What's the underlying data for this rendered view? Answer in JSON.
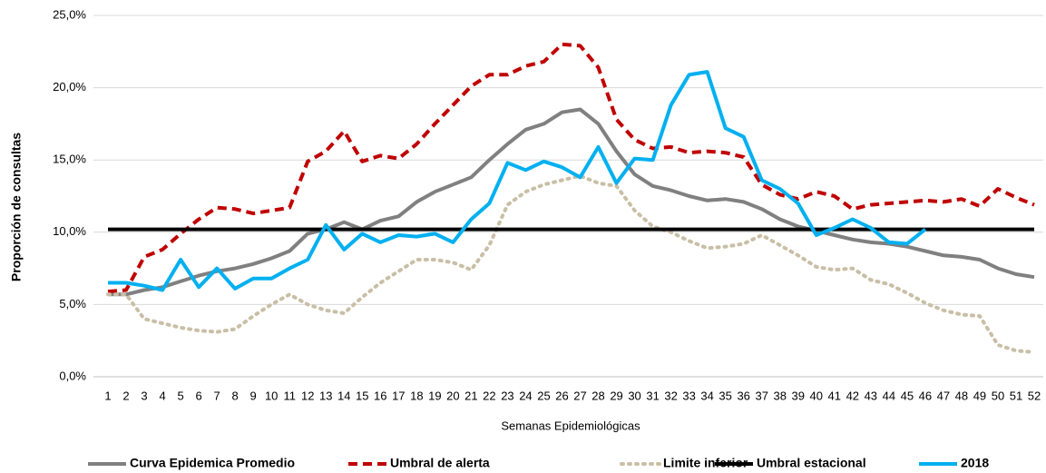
{
  "chart_data": {
    "type": "line",
    "y_axis_label": "Proporción de consultas",
    "x_axis_label": "Semanas Epidemiológicas",
    "categories": [
      "1",
      "2",
      "3",
      "4",
      "5",
      "6",
      "7",
      "8",
      "9",
      "10",
      "11",
      "12",
      "13",
      "14",
      "15",
      "16",
      "17",
      "18",
      "19",
      "20",
      "21",
      "22",
      "23",
      "24",
      "25",
      "26",
      "27",
      "28",
      "29",
      "30",
      "31",
      "32",
      "33",
      "34",
      "35",
      "36",
      "37",
      "38",
      "39",
      "40",
      "41",
      "42",
      "43",
      "44",
      "45",
      "46",
      "47",
      "48",
      "49",
      "50",
      "51",
      "52"
    ],
    "ylim": [
      0,
      25
    ],
    "yticks": [
      {
        "value": 0,
        "label": "0,0%"
      },
      {
        "value": 5,
        "label": "5,0%"
      },
      {
        "value": 10,
        "label": "10,0%"
      },
      {
        "value": 15,
        "label": "15,0%"
      },
      {
        "value": 20,
        "label": "20,0%"
      },
      {
        "value": 25,
        "label": "25,0%"
      }
    ],
    "grid": true,
    "legend": "bottom",
    "series": [
      {
        "name": "Curva Epidemica Promedio",
        "color": "#808080",
        "style": "solid",
        "values": [
          5.7,
          5.7,
          6.0,
          6.2,
          6.6,
          7.0,
          7.3,
          7.5,
          7.8,
          8.2,
          8.7,
          9.9,
          10.2,
          10.7,
          10.2,
          10.8,
          11.1,
          12.1,
          12.8,
          13.3,
          13.8,
          15.0,
          16.1,
          17.1,
          17.5,
          18.3,
          18.5,
          17.5,
          15.6,
          14.0,
          13.2,
          12.9,
          12.5,
          12.2,
          12.3,
          12.1,
          11.6,
          10.9,
          10.4,
          10.1,
          9.8,
          9.5,
          9.3,
          9.2,
          9.0,
          8.7,
          8.4,
          8.3,
          8.1,
          7.5,
          7.1,
          6.9
        ]
      },
      {
        "name": "Umbral de alerta",
        "color": "#c00000",
        "style": "dashed",
        "values": [
          5.9,
          6.0,
          8.3,
          8.8,
          9.9,
          10.9,
          11.7,
          11.6,
          11.3,
          11.5,
          11.7,
          14.9,
          15.6,
          17.0,
          14.9,
          15.3,
          15.1,
          16.1,
          17.5,
          18.8,
          20.1,
          20.9,
          20.9,
          21.5,
          21.8,
          23.0,
          22.9,
          21.4,
          17.8,
          16.4,
          15.8,
          15.9,
          15.5,
          15.6,
          15.5,
          15.2,
          13.3,
          12.6,
          12.3,
          12.8,
          12.5,
          11.6,
          11.9,
          12.0,
          12.1,
          12.2,
          12.1,
          12.3,
          11.8,
          13.0,
          12.4,
          11.9
        ]
      },
      {
        "name": "Limite inferior",
        "color": "#c9bfa6",
        "style": "dotted",
        "values": [
          5.7,
          5.7,
          4.0,
          3.7,
          3.4,
          3.2,
          3.1,
          3.3,
          4.2,
          5.0,
          5.7,
          5.0,
          4.6,
          4.4,
          5.5,
          6.5,
          7.3,
          8.1,
          8.1,
          7.9,
          7.4,
          9.1,
          11.9,
          12.8,
          13.3,
          13.6,
          13.9,
          13.4,
          13.2,
          11.5,
          10.4,
          10.0,
          9.4,
          8.9,
          9.0,
          9.2,
          9.8,
          9.1,
          8.4,
          7.6,
          7.4,
          7.5,
          6.7,
          6.4,
          5.8,
          5.1,
          4.6,
          4.3,
          4.2,
          2.2,
          1.8,
          1.7
        ]
      },
      {
        "name": "Umbral estacional",
        "color": "#000000",
        "style": "solid",
        "values": [
          10.2,
          10.2,
          10.2,
          10.2,
          10.2,
          10.2,
          10.2,
          10.2,
          10.2,
          10.2,
          10.2,
          10.2,
          10.2,
          10.2,
          10.2,
          10.2,
          10.2,
          10.2,
          10.2,
          10.2,
          10.2,
          10.2,
          10.2,
          10.2,
          10.2,
          10.2,
          10.2,
          10.2,
          10.2,
          10.2,
          10.2,
          10.2,
          10.2,
          10.2,
          10.2,
          10.2,
          10.2,
          10.2,
          10.2,
          10.2,
          10.2,
          10.2,
          10.2,
          10.2,
          10.2,
          10.2,
          10.2,
          10.2,
          10.2,
          10.2,
          10.2,
          10.2
        ]
      },
      {
        "name": "2018",
        "color": "#00b0f0",
        "style": "solid",
        "values": [
          6.5,
          6.5,
          6.3,
          6.0,
          8.1,
          6.2,
          7.5,
          6.1,
          6.8,
          6.8,
          7.5,
          8.1,
          10.5,
          8.8,
          9.9,
          9.3,
          9.8,
          9.7,
          9.9,
          9.3,
          10.9,
          12.0,
          14.8,
          14.3,
          14.9,
          14.5,
          13.8,
          15.9,
          13.4,
          15.1,
          15.0,
          18.8,
          20.9,
          21.1,
          17.2,
          16.6,
          13.6,
          13.0,
          12.0,
          9.8,
          10.3,
          10.9,
          10.3,
          9.3,
          9.2,
          10.2,
          null,
          null,
          null,
          null,
          null,
          null
        ]
      }
    ]
  }
}
